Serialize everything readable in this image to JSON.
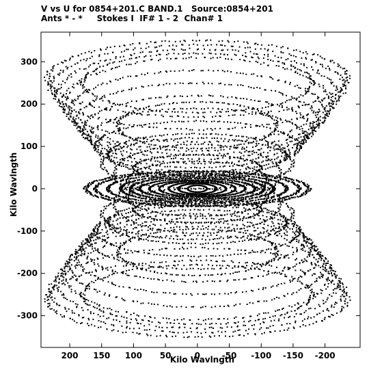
{
  "header": {
    "line1": "V vs U for 0854+201.C BAND.1   Source:0854+201",
    "line2": "Ants * - *     Stokes I  IF# 1 - 2  Chan# 1"
  },
  "chart_data": {
    "type": "scatter",
    "xlabel": "Kilo Wavlngth",
    "ylabel": "Kilo Wavlngth",
    "xlim": [
      245,
      -255
    ],
    "ylim": [
      -375,
      370
    ],
    "x_ticks": [
      200,
      150,
      100,
      50,
      0,
      -50,
      -100,
      -150,
      -200
    ],
    "x_tick_labels": [
      "200",
      "150",
      "100",
      "50",
      "0",
      "-50",
      "-100",
      "-150",
      "-200"
    ],
    "y_ticks": [
      300,
      200,
      100,
      0,
      -100,
      -200,
      -300
    ],
    "y_tick_labels": [
      "300",
      "200",
      "100",
      "0",
      "-100",
      "-200",
      "-300"
    ],
    "marker_color": "#000000",
    "series": [
      {
        "description": "uv-coverage tracks (elliptical arcs, point symmetric about origin)",
        "tracks": [
          {
            "cx": 0,
            "cy": 0,
            "a": 15,
            "b": 8
          },
          {
            "cx": 0,
            "cy": 0,
            "a": 30,
            "b": 12
          },
          {
            "cx": 0,
            "cy": 0,
            "a": 45,
            "b": 15
          },
          {
            "cx": 0,
            "cy": 0,
            "a": 60,
            "b": 18
          },
          {
            "cx": 0,
            "cy": 0,
            "a": 75,
            "b": 20
          },
          {
            "cx": 0,
            "cy": 0,
            "a": 90,
            "b": 24
          },
          {
            "cx": 0,
            "cy": 0,
            "a": 105,
            "b": 28
          },
          {
            "cx": 0,
            "cy": 0,
            "a": 120,
            "b": 32
          },
          {
            "cx": 0,
            "cy": 0,
            "a": 140,
            "b": 36
          },
          {
            "cx": 0,
            "cy": 0,
            "a": 160,
            "b": 40
          },
          {
            "cx": 0,
            "cy": 0,
            "a": 175,
            "b": 42
          },
          {
            "cx": 0,
            "cy": 20,
            "a": 110,
            "b": 45
          },
          {
            "cx": 0,
            "cy": 35,
            "a": 130,
            "b": 70
          },
          {
            "cx": 0,
            "cy": 60,
            "a": 150,
            "b": 60
          },
          {
            "cx": 0,
            "cy": 80,
            "a": 140,
            "b": 50
          },
          {
            "cx": 0,
            "cy": 100,
            "a": 160,
            "b": 60
          },
          {
            "cx": 0,
            "cy": 120,
            "a": 170,
            "b": 70
          },
          {
            "cx": 0,
            "cy": 140,
            "a": 180,
            "b": 80
          },
          {
            "cx": 0,
            "cy": 160,
            "a": 190,
            "b": 90
          },
          {
            "cx": 0,
            "cy": 180,
            "a": 200,
            "b": 100
          },
          {
            "cx": 0,
            "cy": 200,
            "a": 210,
            "b": 110
          },
          {
            "cx": 0,
            "cy": 220,
            "a": 220,
            "b": 110
          },
          {
            "cx": 0,
            "cy": 240,
            "a": 230,
            "b": 100
          },
          {
            "cx": 0,
            "cy": 260,
            "a": 235,
            "b": 90
          },
          {
            "cx": 0,
            "cy": 50,
            "a": 100,
            "b": 30
          },
          {
            "cx": 0,
            "cy": 150,
            "a": 125,
            "b": 55
          },
          {
            "cx": 0,
            "cy": 250,
            "a": 180,
            "b": 70
          }
        ]
      }
    ]
  }
}
